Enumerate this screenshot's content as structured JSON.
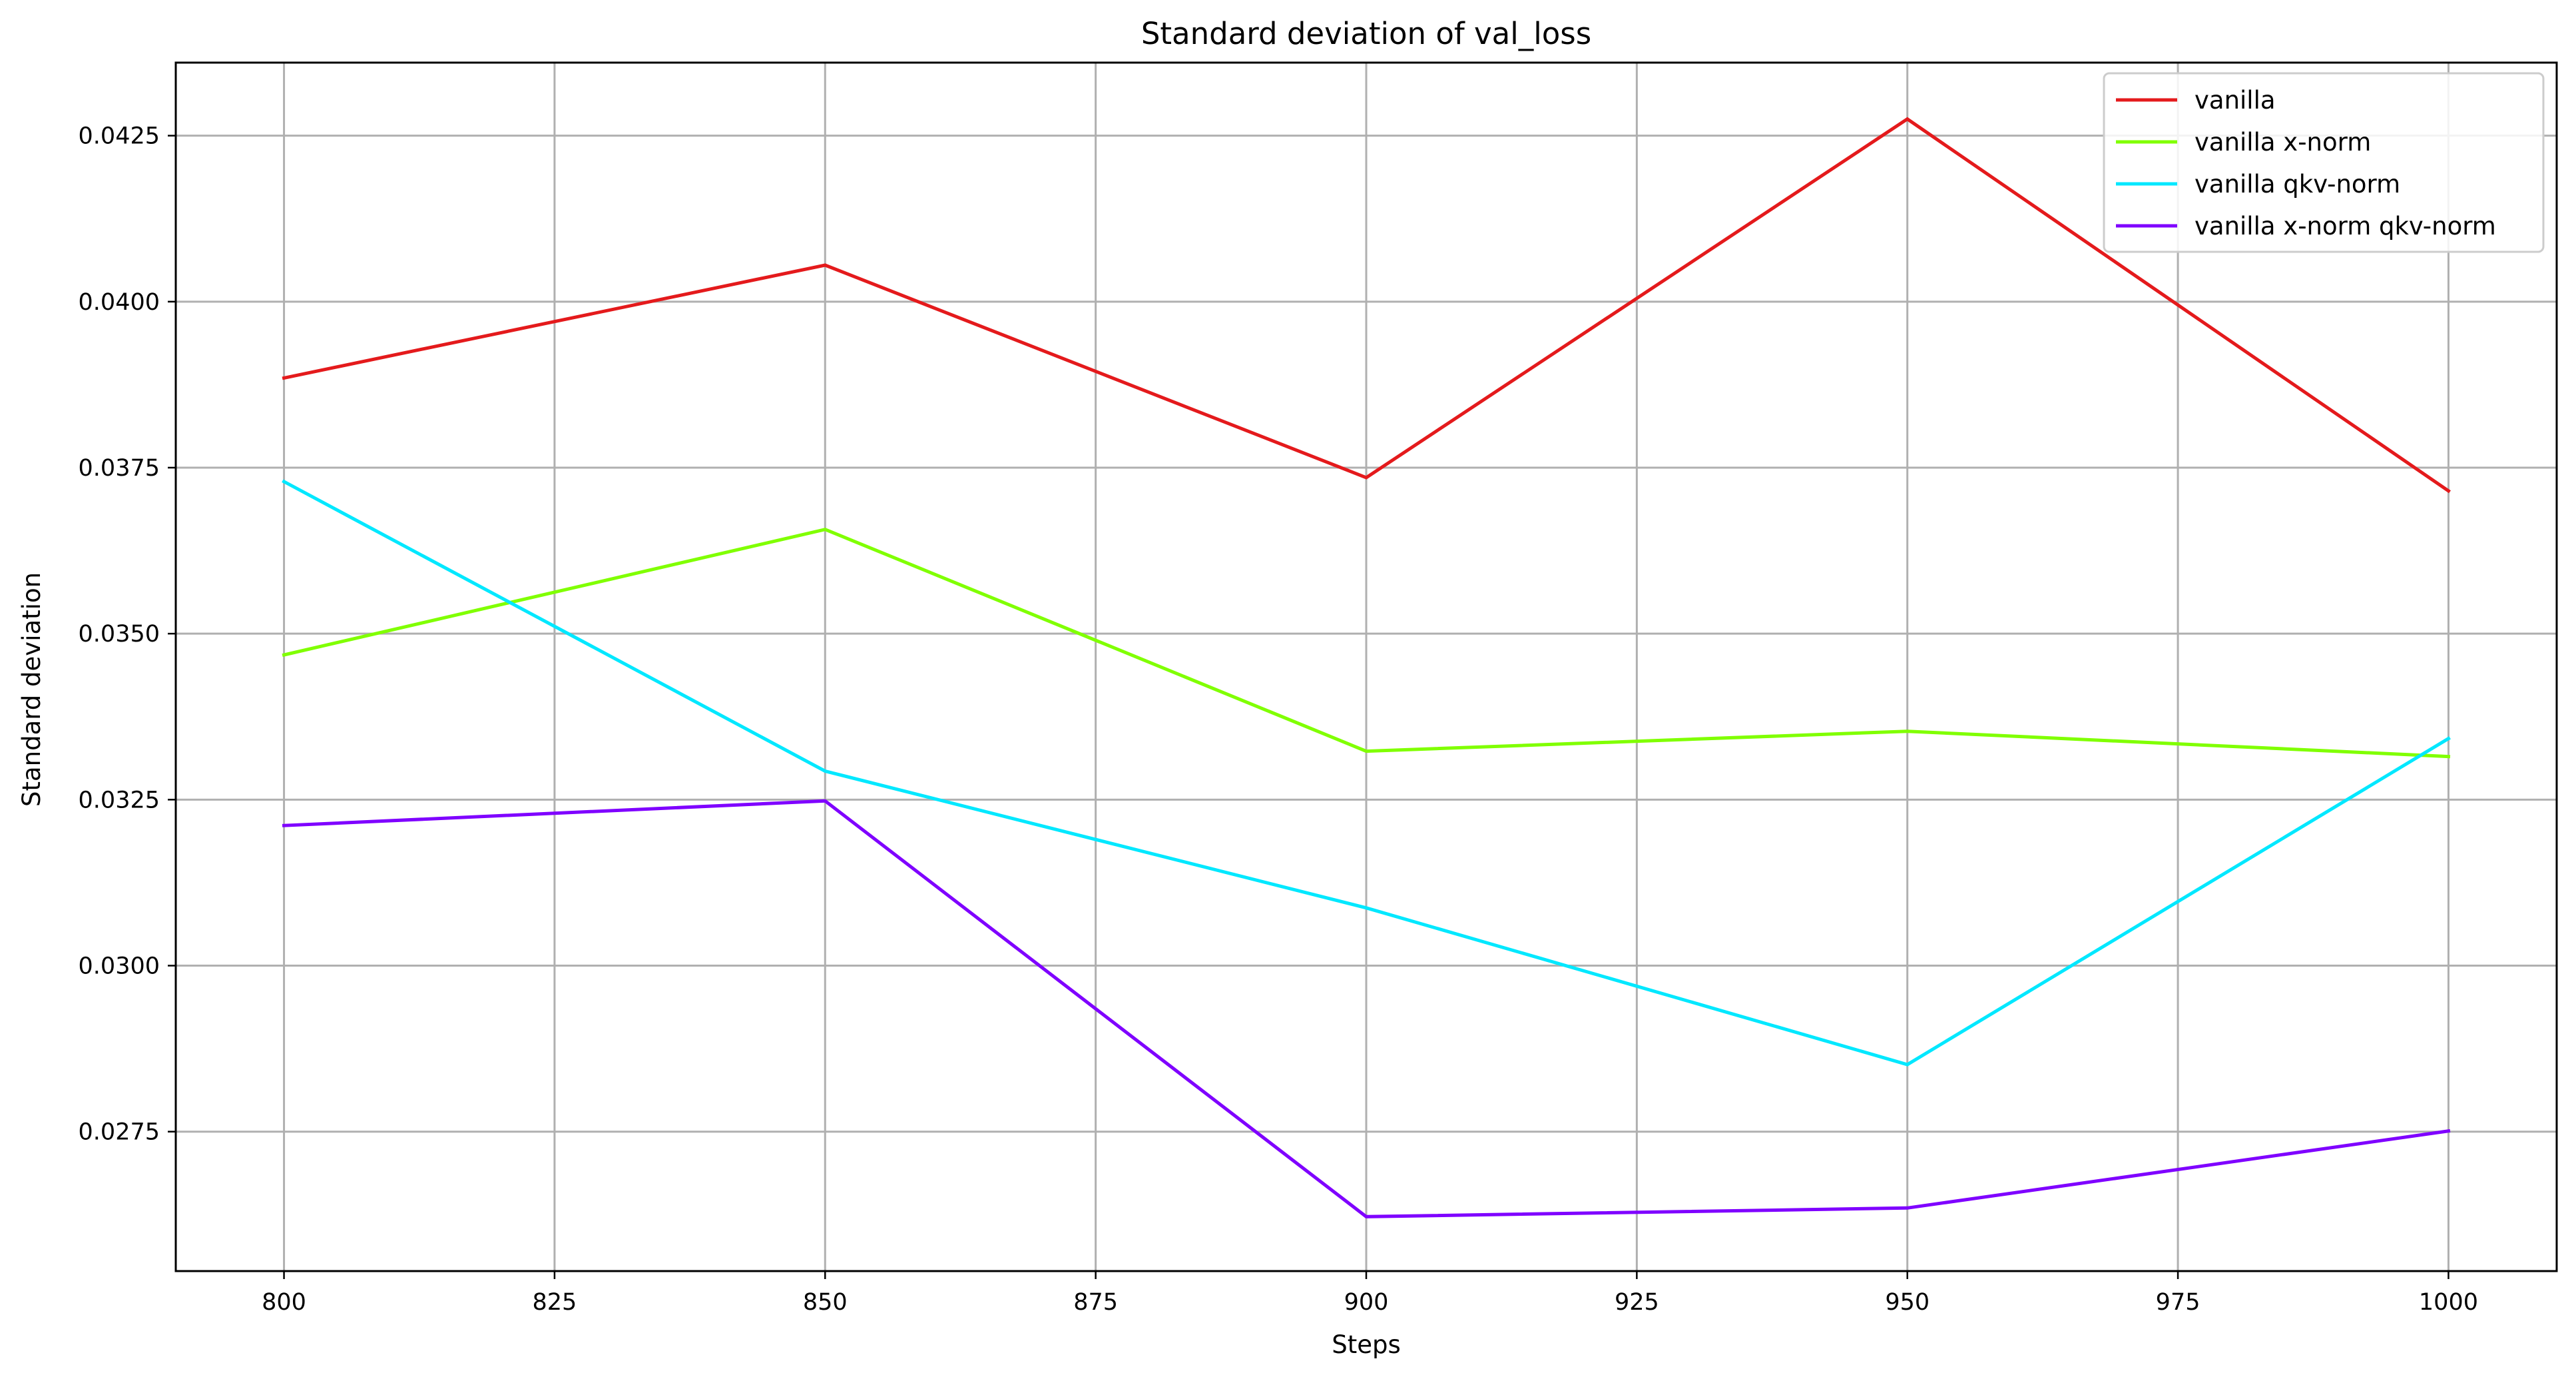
{
  "chart_data": {
    "type": "line",
    "title": "Standard deviation of val_loss",
    "xlabel": "Steps",
    "ylabel": "Standard deviation",
    "x": [
      800,
      850,
      900,
      950,
      1000
    ],
    "xlim": [
      790,
      1010
    ],
    "ylim": [
      0.0254,
      0.0436
    ],
    "xticks": [
      800,
      825,
      850,
      875,
      900,
      925,
      950,
      975,
      1000
    ],
    "xtick_labels": [
      "800",
      "825",
      "850",
      "875",
      "900",
      "925",
      "950",
      "975",
      "1000"
    ],
    "yticks": [
      0.0275,
      0.03,
      0.0325,
      0.035,
      0.0375,
      0.04,
      0.0425
    ],
    "ytick_labels": [
      "0.0275",
      "0.0300",
      "0.0325",
      "0.0350",
      "0.0375",
      "0.0400",
      "0.0425"
    ],
    "grid": true,
    "legend_position": "top-right",
    "series": [
      {
        "name": "vanilla",
        "color": "#e41a1c",
        "values": [
          0.03885,
          0.04055,
          0.03735,
          0.04275,
          0.03715
        ]
      },
      {
        "name": "vanilla x-norm",
        "color": "#80ff00",
        "values": [
          0.03468,
          0.03657,
          0.03323,
          0.03353,
          0.03315
        ]
      },
      {
        "name": "vanilla qkv-norm",
        "color": "#00e8ff",
        "values": [
          0.03729,
          0.03293,
          0.03087,
          0.02851,
          0.03342
        ]
      },
      {
        "name": "vanilla x-norm qkv-norm",
        "color": "#7f00ff",
        "values": [
          0.03211,
          0.03248,
          0.02622,
          0.02635,
          0.02751
        ]
      }
    ]
  }
}
